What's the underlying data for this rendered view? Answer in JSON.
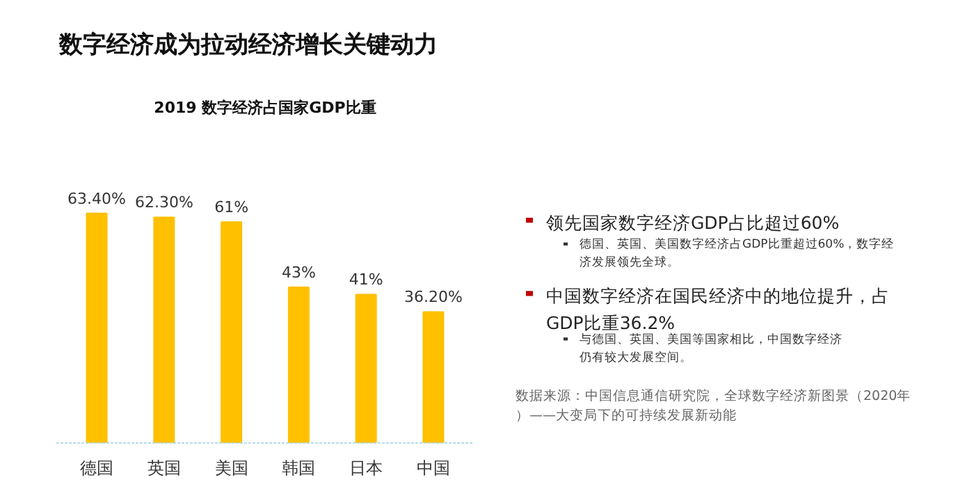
{
  "chart_data": {
    "type": "bar",
    "title": "数字经济成为拉动经济增长关键动力",
    "subtitle": "2019 数字经济占国家GDP比重",
    "categories": [
      "德国",
      "英国",
      "美国",
      "韩国",
      "日本",
      "中国"
    ],
    "values": [
      63.4,
      62.3,
      61,
      43,
      41,
      36.2
    ],
    "value_labels": [
      "63.40%",
      "62.30%",
      "61%",
      "43%",
      "41%",
      "36.20%"
    ],
    "color": "#ffc000",
    "grid": false,
    "annotations": [
      "领先国家数字经济GDP占比超过60%",
      "德国、英国、美国数字经济占GDP比重超过60%，数字经济发展领先全球。",
      "中国数字经济在国民经济中的地位提升，占GDP比重36.2%",
      "与德国、英国、美国等国家相比，中国数字经济仍有较大发展空间。",
      "数据来源：中国信息通信研究院，全球数字经济新图景（2020年）——大变局下的可持续发展新动能"
    ]
  }
}
